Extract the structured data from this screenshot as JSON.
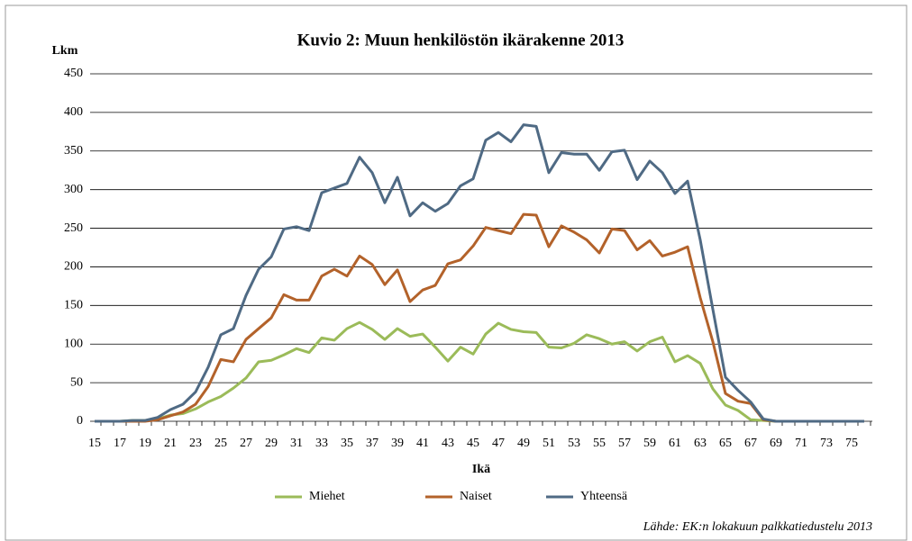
{
  "chart_data": {
    "type": "line",
    "title": "Kuvio 2: Muun henkilöstön ikärakenne 2013",
    "y_label": "Lkm",
    "x_label": "Ikä",
    "source": "Lähde: EK:n lokakuun palkkatiedustelu 2013",
    "categories": [
      15,
      null,
      17,
      null,
      19,
      null,
      21,
      null,
      23,
      null,
      25,
      null,
      27,
      null,
      29,
      null,
      31,
      null,
      33,
      null,
      35,
      null,
      37,
      null,
      39,
      null,
      41,
      null,
      43,
      null,
      45,
      null,
      47,
      null,
      49,
      null,
      51,
      null,
      53,
      null,
      55,
      null,
      57,
      null,
      59,
      null,
      61,
      null,
      63,
      null,
      65,
      null,
      67,
      null,
      69,
      null,
      71,
      null,
      73,
      null,
      75,
      null
    ],
    "ylim": [
      0,
      450
    ],
    "yticks": [
      0,
      50,
      100,
      150,
      200,
      250,
      300,
      350,
      400,
      450
    ],
    "grid": true,
    "legend": "bottom",
    "series": [
      {
        "name": "Miehet",
        "color": "#9bbb59",
        "values": [
          0,
          0,
          0,
          1,
          1,
          3,
          8,
          10,
          16,
          25,
          32,
          43,
          56,
          77,
          79,
          86,
          94,
          89,
          108,
          105,
          120,
          128,
          119,
          106,
          120,
          110,
          113,
          96,
          78,
          96,
          87,
          113,
          127,
          119,
          116,
          115,
          96,
          95,
          101,
          112,
          107,
          100,
          103,
          91,
          103,
          109,
          77,
          85,
          75,
          42,
          21,
          14,
          2,
          1,
          0,
          0,
          0,
          0,
          0,
          0,
          0,
          0
        ]
      },
      {
        "name": "Naiset",
        "color": "#b3622a",
        "values": [
          0,
          0,
          0,
          0,
          0,
          2,
          7,
          12,
          22,
          45,
          80,
          77,
          106,
          120,
          134,
          164,
          157,
          157,
          188,
          197,
          188,
          214,
          203,
          177,
          196,
          155,
          170,
          176,
          204,
          209,
          227,
          251,
          247,
          243,
          268,
          267,
          226,
          253,
          245,
          235,
          218,
          249,
          247,
          222,
          234,
          214,
          219,
          226,
          160,
          103,
          36,
          26,
          23,
          2,
          0,
          0,
          0,
          0,
          0,
          0,
          0,
          0
        ]
      },
      {
        "name": "Yhteensä",
        "color": "#4f6a84",
        "values": [
          0,
          0,
          0,
          1,
          1,
          5,
          15,
          22,
          38,
          70,
          112,
          120,
          163,
          197,
          213,
          249,
          252,
          247,
          296,
          302,
          308,
          342,
          322,
          283,
          316,
          266,
          283,
          272,
          282,
          305,
          314,
          364,
          374,
          362,
          384,
          382,
          322,
          348,
          346,
          346,
          325,
          349,
          351,
          313,
          337,
          322,
          295,
          311,
          235,
          145,
          57,
          40,
          25,
          3,
          0,
          0,
          0,
          0,
          0,
          0,
          0,
          0
        ]
      }
    ]
  }
}
